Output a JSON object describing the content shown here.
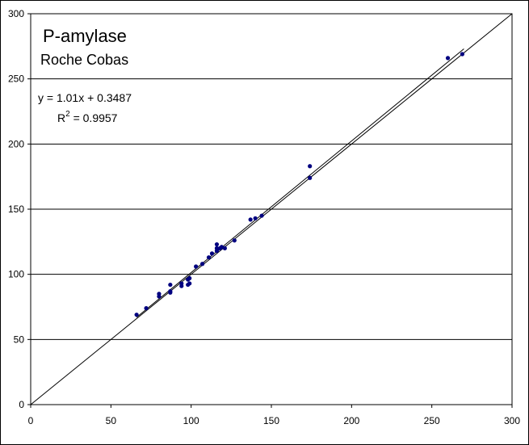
{
  "chart_data": {
    "type": "scatter",
    "title": "P-amylase",
    "subtitle": "Roche Cobas",
    "equation": "y = 1.01x + 0.3487",
    "r2_prefix": "R",
    "r2_exp": "2",
    "r2_value": " = 0.9957",
    "xlim": [
      0,
      300
    ],
    "ylim": [
      0,
      300
    ],
    "xticks": [
      0,
      50,
      100,
      150,
      200,
      250,
      300
    ],
    "yticks": [
      0,
      50,
      100,
      150,
      200,
      250,
      300
    ],
    "grid": "horizontal",
    "point_color": "#000080",
    "line_color": "#000000",
    "identity_line": [
      [
        0,
        0
      ],
      [
        300,
        300
      ]
    ],
    "regression": {
      "slope": 1.01,
      "intercept": 0.3487,
      "x_range": [
        66,
        270
      ]
    },
    "points": [
      [
        66,
        69
      ],
      [
        72,
        74
      ],
      [
        80,
        83
      ],
      [
        80,
        85
      ],
      [
        87,
        86
      ],
      [
        87,
        87
      ],
      [
        87,
        92
      ],
      [
        94,
        91
      ],
      [
        94,
        93
      ],
      [
        98,
        92
      ],
      [
        98,
        96
      ],
      [
        99,
        93
      ],
      [
        99,
        97
      ],
      [
        103,
        106
      ],
      [
        107,
        108
      ],
      [
        111,
        113
      ],
      [
        113,
        116
      ],
      [
        116,
        118
      ],
      [
        116,
        120
      ],
      [
        116,
        123
      ],
      [
        118,
        120
      ],
      [
        119,
        121
      ],
      [
        121,
        120
      ],
      [
        127,
        126
      ],
      [
        137,
        142
      ],
      [
        140,
        143
      ],
      [
        144,
        145
      ],
      [
        174,
        174
      ],
      [
        174,
        183
      ],
      [
        260,
        266
      ],
      [
        269,
        269
      ]
    ]
  }
}
